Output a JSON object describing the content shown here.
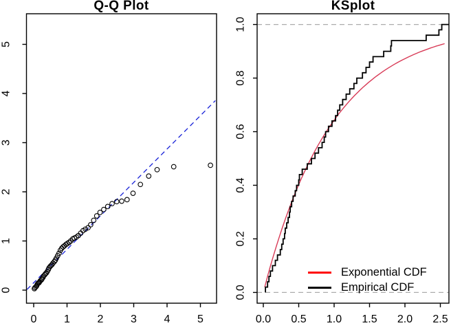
{
  "figure": {
    "background": "#ffffff",
    "border_color": "#000000",
    "text_color": "#000000"
  },
  "chart_data": [
    {
      "type": "scatter",
      "title": "Q-Q Plot",
      "xlabel": "",
      "ylabel": "",
      "xlim": [
        -0.22,
        5.48
      ],
      "ylim": [
        -0.27,
        5.62
      ],
      "grid": false,
      "x_ticks": {
        "values": [
          0,
          1,
          2,
          3,
          4,
          5
        ],
        "labels": [
          "0",
          "1",
          "2",
          "3",
          "4",
          "5"
        ]
      },
      "y_ticks": {
        "values": [
          0,
          1,
          2,
          3,
          4,
          5
        ],
        "labels": [
          "0",
          "1",
          "2",
          "3",
          "4",
          "5"
        ]
      },
      "marker": {
        "shape": "open-circle",
        "color": "#000000",
        "radius_px": 3.3
      },
      "points": [
        [
          0.02,
          0.03
        ],
        [
          0.04,
          0.05
        ],
        [
          0.07,
          0.07
        ],
        [
          0.09,
          0.09
        ],
        [
          0.11,
          0.12
        ],
        [
          0.13,
          0.14
        ],
        [
          0.16,
          0.15
        ],
        [
          0.18,
          0.17
        ],
        [
          0.2,
          0.19
        ],
        [
          0.23,
          0.21
        ],
        [
          0.25,
          0.23
        ],
        [
          0.28,
          0.26
        ],
        [
          0.3,
          0.29
        ],
        [
          0.33,
          0.31
        ],
        [
          0.35,
          0.33
        ],
        [
          0.38,
          0.35
        ],
        [
          0.41,
          0.38
        ],
        [
          0.44,
          0.42
        ],
        [
          0.46,
          0.45
        ],
        [
          0.49,
          0.48
        ],
        [
          0.52,
          0.5
        ],
        [
          0.55,
          0.52
        ],
        [
          0.58,
          0.55
        ],
        [
          0.62,
          0.58
        ],
        [
          0.65,
          0.61
        ],
        [
          0.68,
          0.65
        ],
        [
          0.72,
          0.7
        ],
        [
          0.76,
          0.75
        ],
        [
          0.8,
          0.81
        ],
        [
          0.84,
          0.85
        ],
        [
          0.88,
          0.88
        ],
        [
          0.92,
          0.9
        ],
        [
          0.97,
          0.93
        ],
        [
          1.01,
          0.95
        ],
        [
          1.06,
          0.97
        ],
        [
          1.11,
          1.0
        ],
        [
          1.17,
          1.04
        ],
        [
          1.22,
          1.06
        ],
        [
          1.28,
          1.08
        ],
        [
          1.34,
          1.11
        ],
        [
          1.41,
          1.16
        ],
        [
          1.48,
          1.21
        ],
        [
          1.55,
          1.24
        ],
        [
          1.63,
          1.27
        ],
        [
          1.71,
          1.33
        ],
        [
          1.8,
          1.42
        ],
        [
          1.89,
          1.51
        ],
        [
          1.99,
          1.58
        ],
        [
          2.1,
          1.64
        ],
        [
          2.22,
          1.7
        ],
        [
          2.35,
          1.76
        ],
        [
          2.49,
          1.8
        ],
        [
          2.64,
          1.81
        ],
        [
          2.8,
          1.84
        ],
        [
          2.98,
          1.97
        ],
        [
          3.2,
          2.15
        ],
        [
          3.45,
          2.32
        ],
        [
          3.7,
          2.45
        ],
        [
          4.2,
          2.51
        ],
        [
          5.3,
          2.54
        ]
      ],
      "ref_line": {
        "style": "dashed",
        "color": "#1822D8",
        "slope": 0.68,
        "intercept": 0.15,
        "x_range": [
          -0.2,
          5.45
        ]
      }
    },
    {
      "type": "line",
      "title": "KSplot",
      "xlabel": "",
      "ylabel": "",
      "xlim": [
        -0.09,
        2.62
      ],
      "ylim": [
        -0.04,
        1.04
      ],
      "grid": false,
      "x_ticks": {
        "values": [
          0,
          0.5,
          1,
          1.5,
          2,
          2.5
        ],
        "labels": [
          "0.0",
          "0.5",
          "1.0",
          "1.5",
          "2.0",
          "2.5"
        ]
      },
      "y_ticks": {
        "values": [
          0,
          0.2,
          0.4,
          0.6,
          0.8,
          1.0
        ],
        "labels": [
          "0.0",
          "0.2",
          "0.4",
          "0.6",
          "0.8",
          "1.0"
        ]
      },
      "reference_hlines": {
        "values": [
          0,
          1
        ],
        "style": "dashed",
        "color": "#ABABAB"
      },
      "series": [
        {
          "name": "Exponential CDF",
          "kind": "function",
          "formula": "F(x) = 1 - exp(-1.03 x)",
          "lambda": 1.03,
          "color": "#D83A56",
          "x_range": [
            0.02,
            2.56
          ]
        },
        {
          "name": "Empirical CDF",
          "kind": "ecdf-step",
          "color": "#000000",
          "n": 50,
          "extend_to": 2.62,
          "sorted_sample": [
            0.03,
            0.06,
            0.08,
            0.1,
            0.13,
            0.17,
            0.2,
            0.24,
            0.26,
            0.28,
            0.3,
            0.31,
            0.33,
            0.35,
            0.37,
            0.38,
            0.4,
            0.42,
            0.45,
            0.47,
            0.5,
            0.51,
            0.55,
            0.62,
            0.68,
            0.73,
            0.78,
            0.83,
            0.86,
            0.88,
            0.92,
            0.97,
            1.02,
            1.05,
            1.08,
            1.12,
            1.17,
            1.22,
            1.28,
            1.32,
            1.4,
            1.45,
            1.5,
            1.55,
            1.7,
            1.8,
            1.81,
            2.3,
            2.48,
            2.52
          ]
        }
      ],
      "legend": {
        "position": "bottom-right",
        "entries": [
          {
            "label": "Exponential CDF",
            "color": "#FF0000"
          },
          {
            "label": "Empirical CDF",
            "color": "#000000"
          }
        ]
      }
    }
  ]
}
